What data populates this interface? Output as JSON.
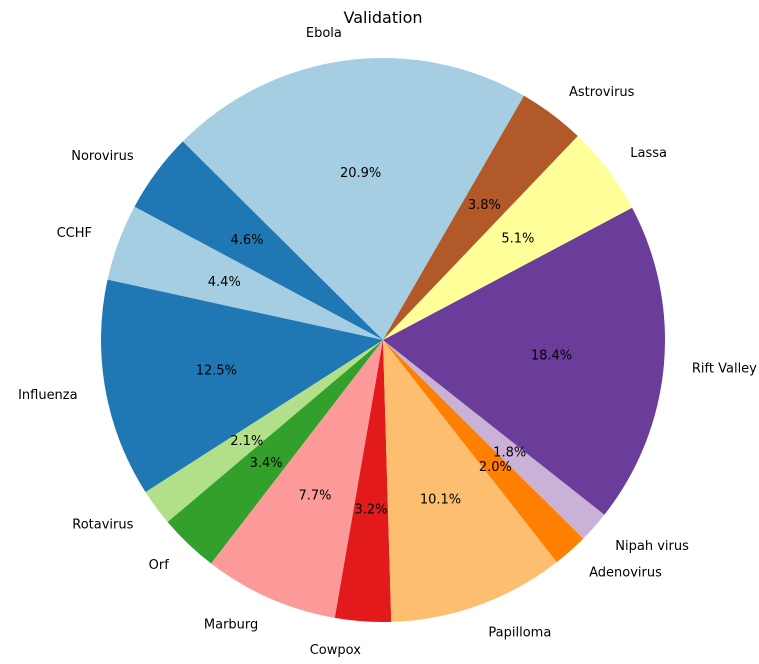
{
  "chart_data": {
    "type": "pie",
    "title": "Validation",
    "start_angle_deg": 60,
    "direction": "counterclockwise",
    "slices": [
      {
        "label": "Ebola",
        "percent": 20.9,
        "color": "#a6cee3"
      },
      {
        "label": "Norovirus",
        "percent": 4.6,
        "color": "#1f78b4"
      },
      {
        "label": "CCHF",
        "percent": 4.4,
        "color": "#a6cee3"
      },
      {
        "label": "Influenza",
        "percent": 12.5,
        "color": "#1f78b4"
      },
      {
        "label": "Rotavirus",
        "percent": 2.1,
        "color": "#b2df8a"
      },
      {
        "label": "Orf",
        "percent": 3.4,
        "color": "#33a02c"
      },
      {
        "label": "Marburg",
        "percent": 7.7,
        "color": "#fb9a99"
      },
      {
        "label": "Cowpox",
        "percent": 3.2,
        "color": "#e31a1c"
      },
      {
        "label": "Papilloma",
        "percent": 10.1,
        "color": "#fdbf6f"
      },
      {
        "label": "Adenovirus",
        "percent": 2.0,
        "color": "#ff7f00"
      },
      {
        "label": "Nipah virus",
        "percent": 1.8,
        "color": "#cab2d6"
      },
      {
        "label": "Rift Valley",
        "percent": 18.4,
        "color": "#6a3d9a"
      },
      {
        "label": "Lassa",
        "percent": 5.1,
        "color": "#ffff99"
      },
      {
        "label": "Astrovirus",
        "percent": 3.8,
        "color": "#b15928"
      }
    ]
  }
}
